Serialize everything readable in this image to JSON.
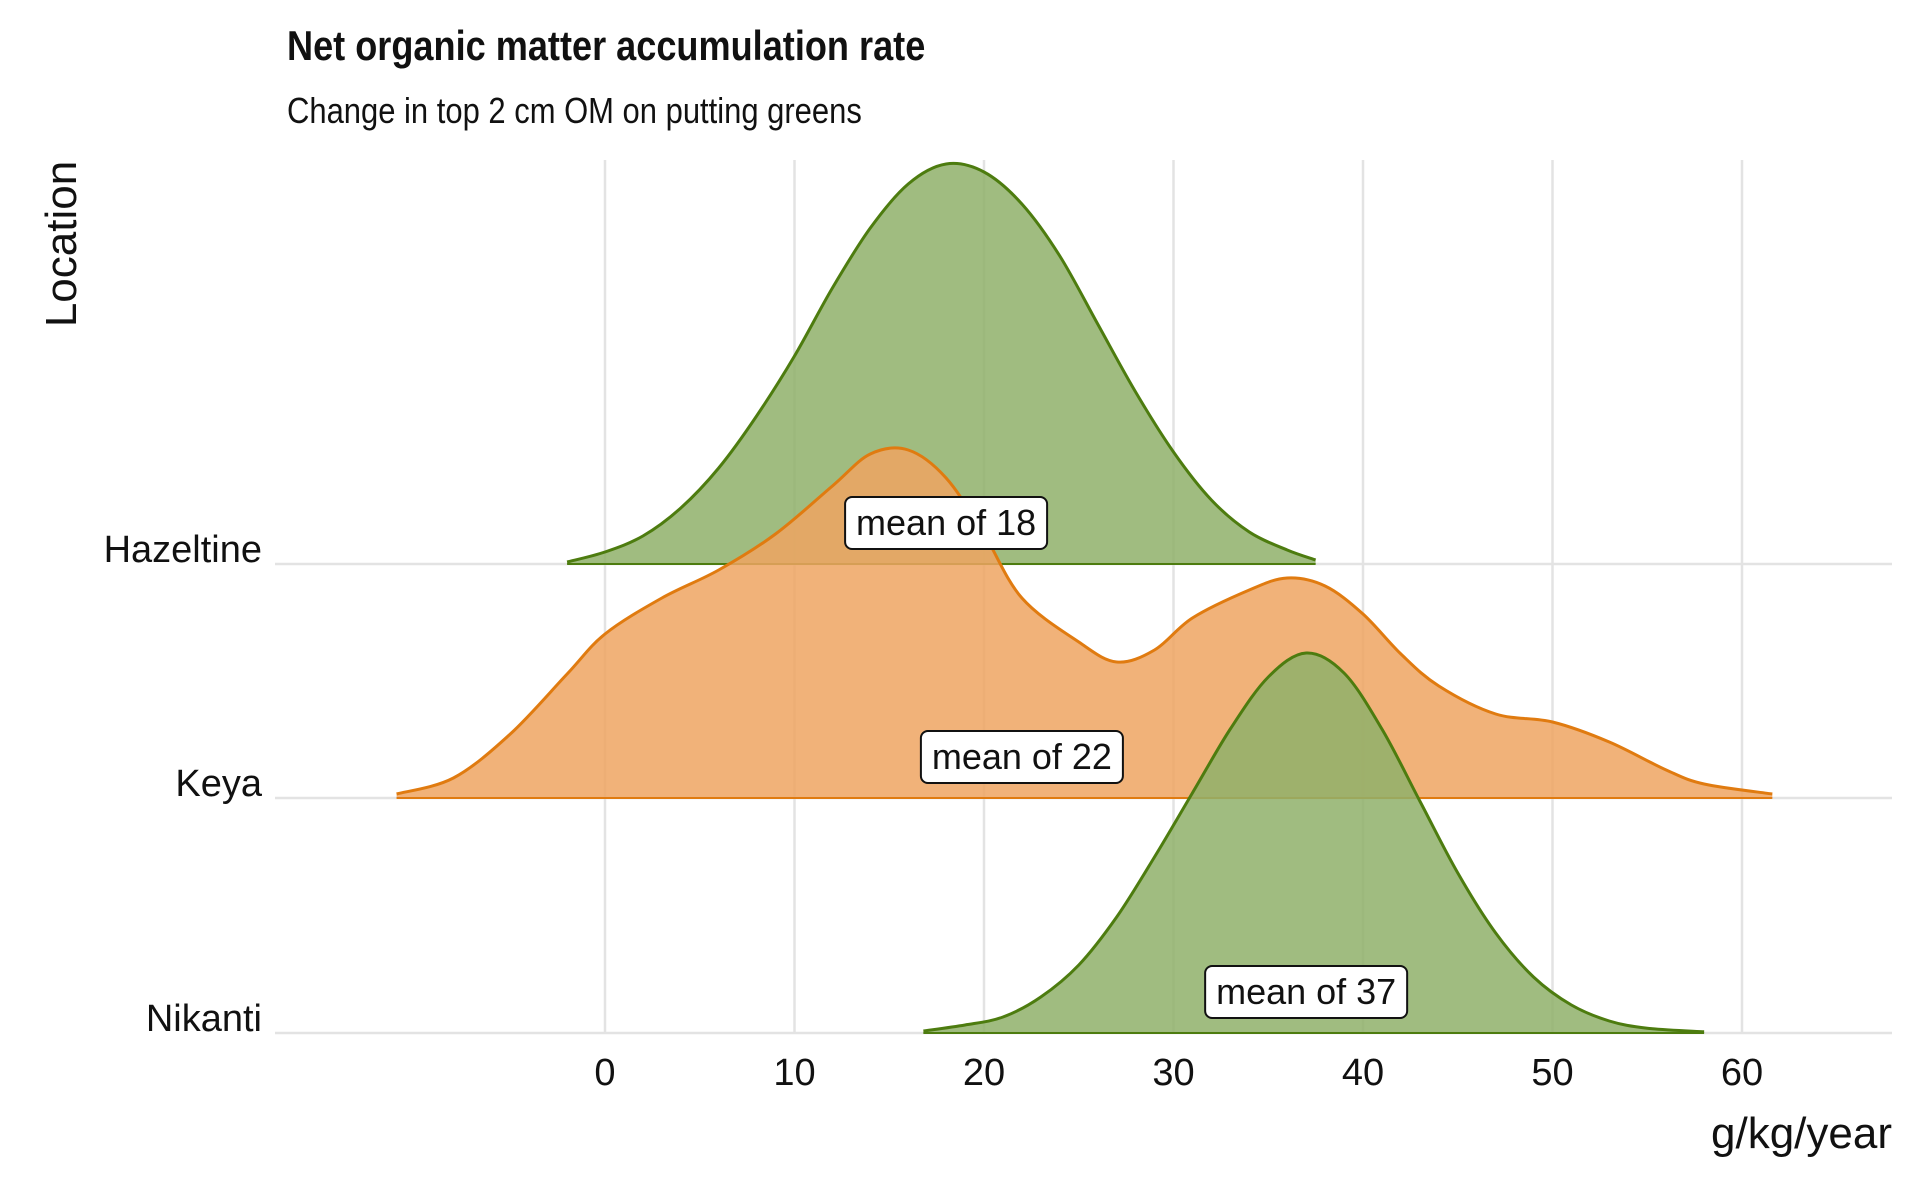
{
  "chart_data": {
    "type": "area",
    "subtype": "ridgeline-density",
    "title": "Net organic matter accumulation rate",
    "subtitle": "Change in top 2 cm OM on putting greens",
    "xlabel": "g/kg/year",
    "ylabel": "Location",
    "xlim": [
      -17,
      68
    ],
    "x_ticks": [
      "0",
      "10",
      "20",
      "30",
      "40",
      "50",
      "60"
    ],
    "grid": true,
    "categories": [
      "Hazeltine",
      "Keya",
      "Nikanti"
    ],
    "series": [
      {
        "name": "Hazeltine",
        "color": "#4d7c0f",
        "fill": "#8fb06a",
        "mean_label": "mean of 18",
        "mean": 18,
        "density": [
          [
            -2,
            0.005
          ],
          [
            0,
            0.03
          ],
          [
            2,
            0.07
          ],
          [
            4,
            0.14
          ],
          [
            6,
            0.24
          ],
          [
            8,
            0.37
          ],
          [
            10,
            0.52
          ],
          [
            12,
            0.69
          ],
          [
            14,
            0.84
          ],
          [
            16,
            0.95
          ],
          [
            18,
            1.0
          ],
          [
            20,
            0.98
          ],
          [
            22,
            0.9
          ],
          [
            24,
            0.77
          ],
          [
            26,
            0.6
          ],
          [
            28,
            0.43
          ],
          [
            30,
            0.28
          ],
          [
            32,
            0.16
          ],
          [
            34,
            0.08
          ],
          [
            36,
            0.035
          ],
          [
            37.5,
            0.01
          ]
        ]
      },
      {
        "name": "Keya",
        "color": "#e07b10",
        "fill": "#eea562",
        "mean_label": "mean of 22",
        "mean": 22,
        "density": [
          [
            -11,
            0.01
          ],
          [
            -8,
            0.05
          ],
          [
            -5,
            0.16
          ],
          [
            -2,
            0.31
          ],
          [
            0,
            0.41
          ],
          [
            3,
            0.5
          ],
          [
            6,
            0.57
          ],
          [
            9,
            0.66
          ],
          [
            12,
            0.78
          ],
          [
            14,
            0.86
          ],
          [
            16,
            0.87
          ],
          [
            18,
            0.8
          ],
          [
            20,
            0.66
          ],
          [
            22,
            0.5
          ],
          [
            25,
            0.39
          ],
          [
            27,
            0.34
          ],
          [
            29,
            0.37
          ],
          [
            31,
            0.45
          ],
          [
            34,
            0.52
          ],
          [
            36,
            0.55
          ],
          [
            38,
            0.53
          ],
          [
            40,
            0.46
          ],
          [
            42,
            0.36
          ],
          [
            44,
            0.28
          ],
          [
            47,
            0.21
          ],
          [
            50,
            0.19
          ],
          [
            53,
            0.14
          ],
          [
            56,
            0.07
          ],
          [
            58,
            0.035
          ],
          [
            61.6,
            0.01
          ]
        ]
      },
      {
        "name": "Nikanti",
        "color": "#4d7c0f",
        "fill": "#8fb06a",
        "mean_label": "mean of 37",
        "mean": 37,
        "density": [
          [
            16.8,
            0.005
          ],
          [
            19,
            0.02
          ],
          [
            21,
            0.04
          ],
          [
            23,
            0.09
          ],
          [
            25,
            0.17
          ],
          [
            27,
            0.29
          ],
          [
            29,
            0.44
          ],
          [
            31,
            0.6
          ],
          [
            33,
            0.76
          ],
          [
            35,
            0.89
          ],
          [
            37,
            0.95
          ],
          [
            39,
            0.9
          ],
          [
            41,
            0.76
          ],
          [
            43,
            0.58
          ],
          [
            45,
            0.4
          ],
          [
            47,
            0.25
          ],
          [
            49,
            0.14
          ],
          [
            51,
            0.07
          ],
          [
            53,
            0.03
          ],
          [
            55,
            0.012
          ],
          [
            58,
            0.003
          ]
        ]
      }
    ]
  }
}
